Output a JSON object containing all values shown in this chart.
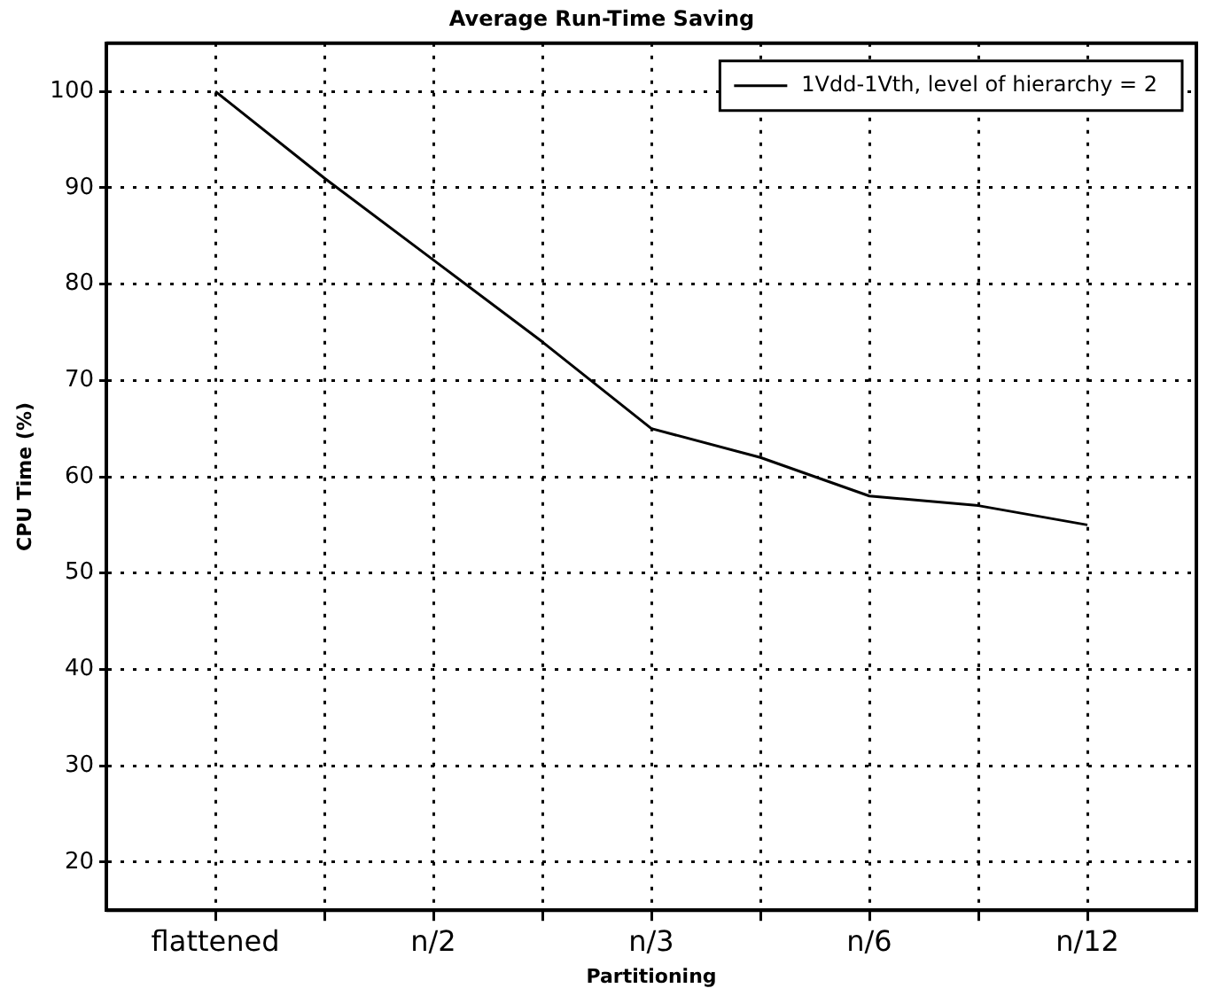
{
  "chart_data": {
    "type": "line",
    "title": "Average Run-Time Saving",
    "xlabel": "Partitioning",
    "ylabel": "CPU Time (%)",
    "categories": [
      "flattened",
      null,
      "n/2",
      null,
      "n/3",
      null,
      "n/6",
      null,
      "n/12"
    ],
    "series": [
      {
        "name": "1Vdd-1Vth, level of hierarchy = 2",
        "color": "#000000",
        "values": [
          100,
          91,
          82.5,
          74,
          65,
          62,
          58,
          57,
          55
        ]
      }
    ],
    "ylim": [
      15,
      105
    ],
    "yticks": [
      20,
      30,
      40,
      50,
      60,
      70,
      80,
      90,
      100
    ],
    "grid": true,
    "legend": "top right",
    "marker": "none",
    "line_style": "solid"
  }
}
